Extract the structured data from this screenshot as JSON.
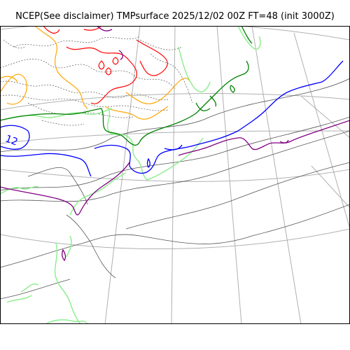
{
  "title": "NCEP(See disclaimer) TMPsurface 2025/12/02 00Z FT=48 (init 3000Z)",
  "map": {
    "contour_label": "12",
    "colors": {
      "background": "#ffffff",
      "graticule": "#b0b0b0",
      "coastline_gray": "#555555",
      "dotted": "#555555",
      "red": "#ff0000",
      "orange": "#ffa500",
      "light_green": "#90ee90",
      "dark_green": "#008000",
      "blue": "#0000ff",
      "purple": "#800080"
    }
  }
}
